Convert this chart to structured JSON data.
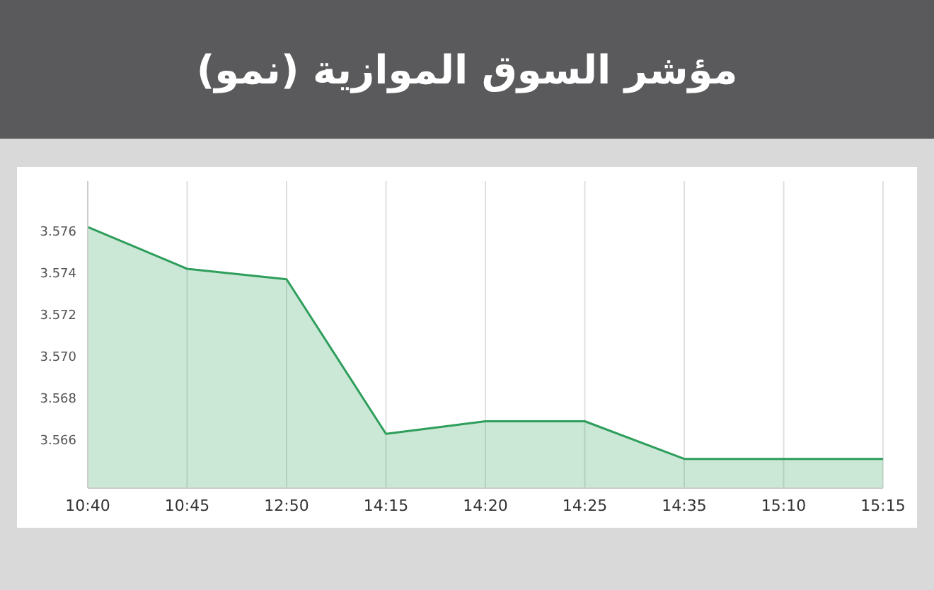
{
  "chart_data": {
    "type": "area",
    "title": "مؤشر السوق الموازية (نمو)",
    "categories": [
      "10:40",
      "10:45",
      "12:50",
      "14:15",
      "14:20",
      "14:25",
      "14:35",
      "15:10",
      "15:15"
    ],
    "series": [
      {
        "color": "#2e9e5b",
        "values": [
          3.5762,
          3.5742,
          3.5737,
          3.5663,
          3.5669,
          3.5669,
          3.5651,
          3.5651,
          3.5651
        ]
      }
    ],
    "ylim": [
      3.5637,
      3.5784
    ],
    "yticks": [
      3.566,
      3.568,
      {
        "value": 3.57,
        "label": "3.570"
      },
      3.572,
      3.574,
      3.576
    ],
    "grid": "x"
  }
}
